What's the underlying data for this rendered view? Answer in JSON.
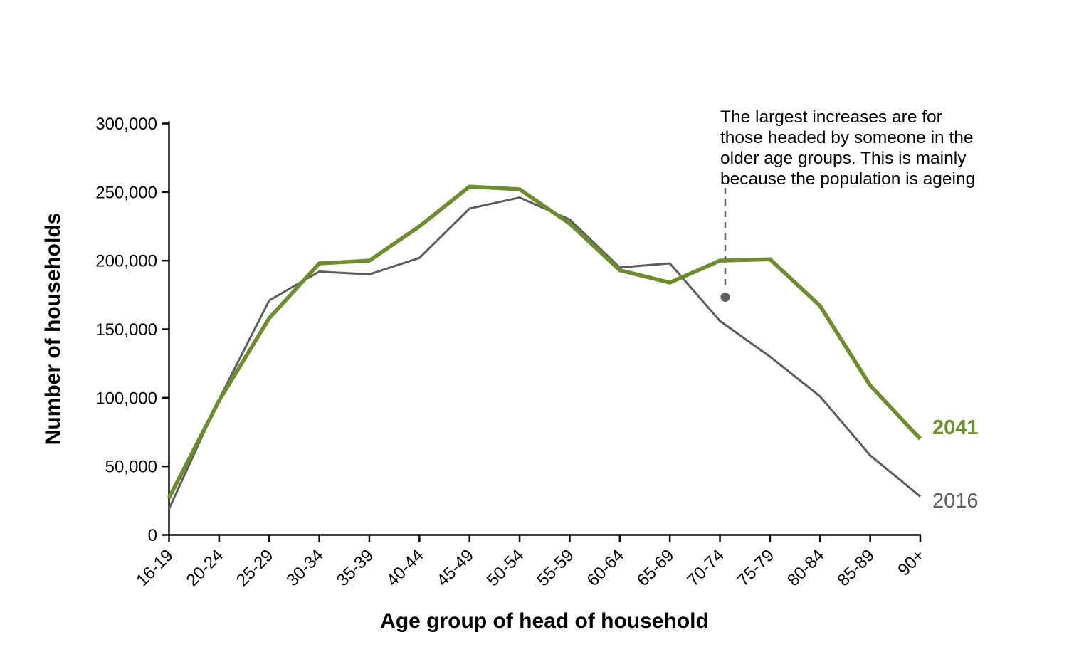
{
  "chart_data": {
    "type": "line",
    "title": "",
    "xlabel": "Age group of head of household",
    "ylabel": "Number of households",
    "categories": [
      "16-19",
      "20-24",
      "25-29",
      "30-34",
      "35-39",
      "40-44",
      "45-49",
      "50-54",
      "55-59",
      "60-64",
      "65-69",
      "70-74",
      "75-79",
      "80-84",
      "85-89",
      "90+"
    ],
    "series": [
      {
        "name": "2016",
        "color": "#5c5c5c",
        "values": [
          19000,
          99000,
          171000,
          192000,
          190000,
          202000,
          238000,
          246000,
          230000,
          195000,
          198000,
          156000,
          130000,
          101000,
          58000,
          28000
        ]
      },
      {
        "name": "2041",
        "color": "#6e8c2d",
        "values": [
          27000,
          98000,
          158000,
          198000,
          200000,
          225000,
          254000,
          252000,
          227000,
          193000,
          184000,
          200000,
          201000,
          167000,
          109000,
          70000
        ]
      }
    ],
    "ylim": [
      0,
      300000
    ],
    "ytick_step": 50000,
    "ytick_labels": [
      "0",
      "50,000",
      "100,000",
      "150,000",
      "200,000",
      "250,000",
      "300,000"
    ],
    "grid": false,
    "legend_position": "line-end-labels"
  },
  "annotation": {
    "lines": [
      "The largest increases are for",
      "those headed by someone in the",
      "older age groups. This is mainly",
      "because the population is ageing"
    ],
    "text": "The largest increases are for those headed by someone in the older age groups. This is mainly because the population is ageing",
    "pointer_color": "#666666",
    "dot_color": "#5f5f5f"
  }
}
